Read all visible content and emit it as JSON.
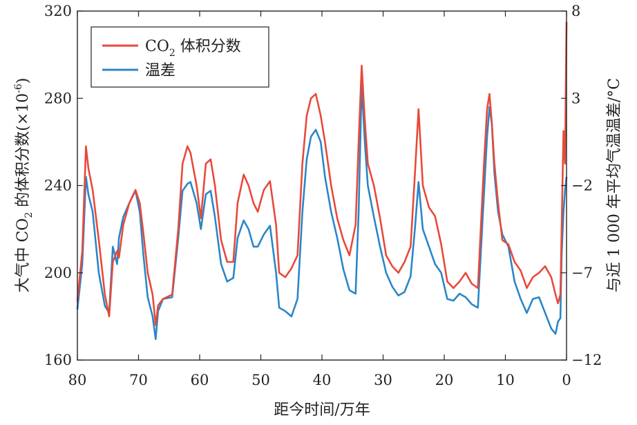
{
  "chart_data": {
    "type": "line",
    "xlabel": "距今时间/万年",
    "ylabel_left": "大气中 CO",
    "ylabel_left_sub": "2",
    "ylabel_left_rest": " 的体积分数(×10",
    "ylabel_left_sup": "-6",
    "ylabel_left_close": ")",
    "ylabel_right": "与近 1 000 年平均气温温差/°C",
    "xlim": [
      80,
      0
    ],
    "ylim_left": [
      160,
      320
    ],
    "ylim_right": [
      -12,
      8
    ],
    "xticks": [
      80,
      70,
      60,
      50,
      40,
      30,
      20,
      10,
      0
    ],
    "xtick_labels": [
      "80",
      "70",
      "60",
      "50",
      "40",
      "30",
      "20",
      "10",
      "0"
    ],
    "yticks_left": [
      160,
      200,
      240,
      280,
      320
    ],
    "ytick_labels_left": [
      "160",
      "200",
      "240",
      "280",
      "320"
    ],
    "yticks_right": [
      -12,
      -7,
      -2,
      3,
      8
    ],
    "ytick_labels_right": [
      "−12",
      "−7",
      "−2",
      "3",
      "8"
    ],
    "legend_position": "top-left",
    "series": [
      {
        "name": "CO",
        "name_sub": "2",
        "name_rest": " 体积分数",
        "axis": "left",
        "color": "#e8493a",
        "x": [
          80,
          79.2,
          78.6,
          78.2,
          77.5,
          76.5,
          75.5,
          74.8,
          74.2,
          73.5,
          73.2,
          72.5,
          71.5,
          70.5,
          69.8,
          69.2,
          68.5,
          67.7,
          67.2,
          66.8,
          66,
          64.5,
          63.5,
          62.8,
          62,
          61.5,
          60.5,
          59.8,
          59,
          58.2,
          57.5,
          56.5,
          55.5,
          54.5,
          53.8,
          52.8,
          52,
          51.2,
          50.5,
          49.5,
          48.5,
          47.5,
          47,
          46,
          45,
          44,
          43.2,
          42.5,
          41.8,
          41,
          40.2,
          39.5,
          38.5,
          37.5,
          36.5,
          35.5,
          34.5,
          34,
          33.5,
          33,
          32.5,
          31.5,
          30.5,
          29.5,
          28.5,
          27.5,
          26.5,
          25.5,
          24.8,
          24.2,
          23.5,
          22.5,
          21.5,
          20.5,
          19.5,
          18.5,
          17.5,
          16.5,
          15.5,
          14.5,
          13.5,
          13,
          12.6,
          12.2,
          11.8,
          11.2,
          10.5,
          9.5,
          8.5,
          7.5,
          6.5,
          5.5,
          4.5,
          3.5,
          2.5,
          1.8,
          1.4,
          1,
          0.8,
          0.5,
          0.25,
          0
        ],
        "values": [
          187,
          210,
          258,
          248,
          238,
          215,
          190,
          180,
          205,
          210,
          207,
          222,
          232,
          238,
          232,
          218,
          200,
          190,
          176,
          185,
          188,
          190,
          220,
          250,
          258,
          255,
          240,
          225,
          250,
          252,
          240,
          215,
          205,
          205,
          232,
          245,
          240,
          232,
          228,
          238,
          242,
          222,
          200,
          198,
          202,
          208,
          250,
          272,
          280,
          282,
          272,
          260,
          240,
          225,
          215,
          208,
          222,
          260,
          295,
          270,
          250,
          240,
          225,
          208,
          203,
          200,
          205,
          212,
          245,
          275,
          240,
          230,
          226,
          213,
          196,
          193,
          196,
          200,
          195,
          193,
          250,
          275,
          282,
          268,
          250,
          232,
          215,
          213,
          205,
          201,
          193,
          198,
          200,
          203,
          198,
          190,
          186,
          190,
          220,
          265,
          250,
          315
        ]
      },
      {
        "name": "温差",
        "axis": "right",
        "color": "#2a86c8",
        "x": [
          80,
          79.2,
          78.6,
          78.2,
          77.5,
          76.5,
          75.5,
          74.8,
          74.2,
          73.5,
          73.2,
          72.5,
          71.5,
          70.5,
          69.8,
          69.2,
          68.5,
          67.7,
          67.2,
          66.8,
          66,
          64.5,
          63.5,
          62.8,
          62,
          61.5,
          60.5,
          59.8,
          59,
          58.2,
          57.5,
          56.5,
          55.5,
          54.5,
          53.8,
          52.8,
          52,
          51.2,
          50.5,
          49.5,
          48.5,
          47.5,
          47,
          46,
          45,
          44,
          43.2,
          42.5,
          41.8,
          41,
          40.2,
          39.5,
          38.5,
          37.5,
          36.5,
          35.5,
          34.5,
          34,
          33.5,
          33,
          32.5,
          31.5,
          30.5,
          29.5,
          28.5,
          27.5,
          26.5,
          25.5,
          24.8,
          24.2,
          23.5,
          22.5,
          21.5,
          20.5,
          19.5,
          18.5,
          17.5,
          16.5,
          15.5,
          14.5,
          13.5,
          13,
          12.6,
          12.2,
          11.8,
          11.2,
          10.5,
          9.5,
          8.5,
          7.5,
          6.5,
          5.5,
          4.5,
          3.5,
          2.5,
          1.8,
          1.4,
          1,
          0.8,
          0.5,
          0.25,
          0
        ],
        "values": [
          -9.1,
          -6.5,
          -1.5,
          -2.5,
          -3.5,
          -7,
          -8.9,
          -9.3,
          -5.5,
          -6.5,
          -5,
          -3.8,
          -3,
          -2.3,
          -3.5,
          -6,
          -8.4,
          -9.5,
          -10.8,
          -9.2,
          -8.5,
          -8.4,
          -5,
          -2.3,
          -1.9,
          -1.8,
          -3,
          -4.5,
          -2.5,
          -2.3,
          -3.8,
          -6.5,
          -7.5,
          -7.3,
          -5,
          -4,
          -4.5,
          -5.5,
          -5.5,
          -4.8,
          -4.3,
          -7,
          -9,
          -9.2,
          -9.5,
          -8.5,
          -3.5,
          -0.5,
          0.8,
          1.2,
          0.5,
          -1.5,
          -3.5,
          -5,
          -6.8,
          -8,
          -8.2,
          -3.5,
          3.8,
          0.5,
          -2,
          -3.8,
          -5.5,
          -7,
          -7.8,
          -8.3,
          -8.1,
          -7.2,
          -4.5,
          -1.8,
          -4.5,
          -5.5,
          -6.5,
          -7,
          -8.5,
          -8.6,
          -8.2,
          -8.4,
          -8.8,
          -9,
          -2.5,
          0.8,
          2.5,
          1.5,
          -1.3,
          -3.5,
          -4.8,
          -5.5,
          -7.5,
          -8.5,
          -9.3,
          -8.5,
          -8.4,
          -9.3,
          -10.2,
          -10.5,
          -9.8,
          -9.6,
          -6,
          -3.5,
          -2.3,
          -1.5
        ]
      }
    ]
  }
}
